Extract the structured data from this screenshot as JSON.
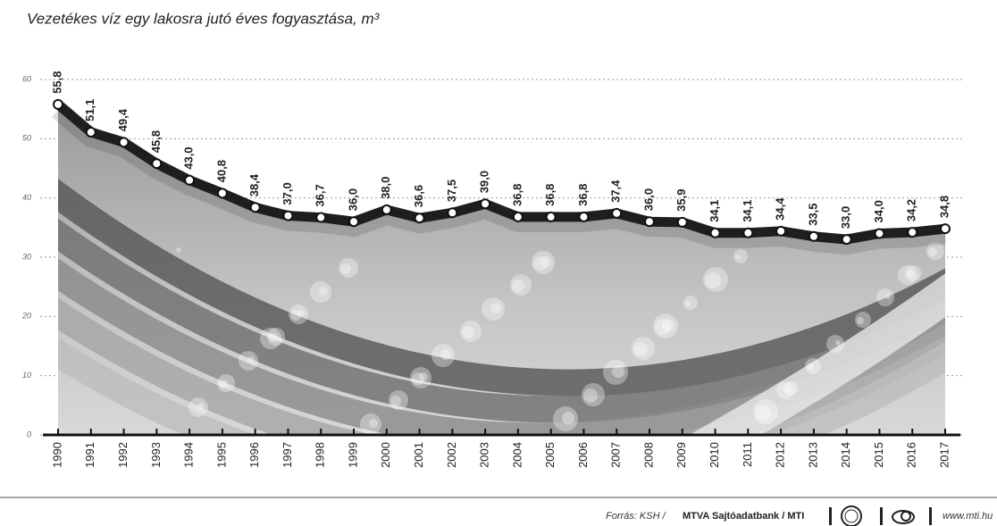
{
  "chart_data": {
    "type": "line",
    "title": "Vezetékes víz egy lakosra jutó éves fogyasztása, m³",
    "categories": [
      "1990",
      "1991",
      "1992",
      "1993",
      "1994",
      "1995",
      "1996",
      "1997",
      "1998",
      "1999",
      "2000",
      "2001",
      "2002",
      "2003",
      "2004",
      "2005",
      "2006",
      "2007",
      "2008",
      "2009",
      "2010",
      "2011",
      "2012",
      "2013",
      "2014",
      "2015",
      "2016",
      "2017"
    ],
    "values": [
      55.8,
      51.1,
      49.4,
      45.8,
      43.0,
      40.8,
      38.4,
      37.0,
      36.7,
      36.0,
      38.0,
      36.6,
      37.5,
      39.0,
      36.8,
      36.8,
      36.8,
      37.4,
      36.0,
      35.9,
      34.1,
      34.1,
      34.4,
      33.5,
      33.0,
      34.0,
      34.2,
      34.8
    ],
    "value_labels": [
      "55,8",
      "51,1",
      "49,4",
      "45,8",
      "43,0",
      "40,8",
      "38,4",
      "37,0",
      "36,7",
      "36,0",
      "38,0",
      "36,6",
      "37,5",
      "39,0",
      "36,8",
      "36,8",
      "36,8",
      "37,4",
      "36,0",
      "35,9",
      "34,1",
      "34,1",
      "34,4",
      "33,5",
      "33,0",
      "34,0",
      "34,2",
      "34,8"
    ],
    "color": "#1e1e1e",
    "ylim": [
      0,
      60
    ],
    "yticks": [
      0,
      10,
      20,
      30,
      40,
      50,
      60
    ],
    "grid": true,
    "source": "Forrás: KSH /",
    "source_bold": "MTVA Sajtóadatbank / MTI",
    "website": "www.mti.hu"
  }
}
